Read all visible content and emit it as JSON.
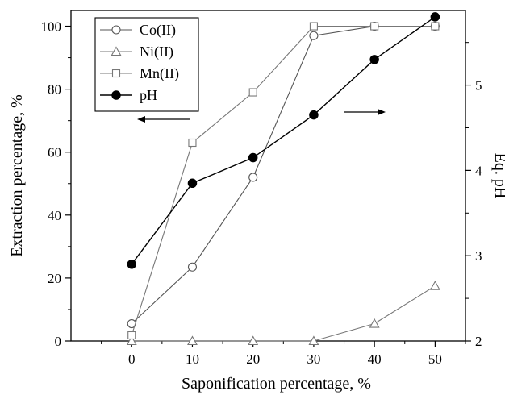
{
  "chart_data": {
    "type": "line",
    "x": [
      0,
      10,
      20,
      30,
      40,
      50
    ],
    "xlabel": "Saponification percentage, %",
    "ylabel": "Extraction percentage, %",
    "y2label": "Eq. pH",
    "xlim": [
      -10,
      55
    ],
    "ylim": [
      0,
      105
    ],
    "y2lim": [
      2,
      5.875
    ],
    "xticks": [
      "0",
      "10",
      "20",
      "30",
      "40",
      "50"
    ],
    "yticks": [
      "0",
      "20",
      "40",
      "60",
      "80",
      "100"
    ],
    "y2ticks": [
      "2",
      "3",
      "4",
      "5"
    ],
    "legend_position": "top-left",
    "series": [
      {
        "name": "Co(II)",
        "axis": "left",
        "marker": "circle-open",
        "color": "#555555",
        "values": [
          5.5,
          23.5,
          52,
          97,
          100,
          100
        ]
      },
      {
        "name": "Ni(II)",
        "axis": "left",
        "marker": "triangle-open",
        "color": "#777777",
        "values": [
          0,
          0,
          0,
          0,
          5.5,
          17.5
        ]
      },
      {
        "name": "Mn(II)",
        "axis": "left",
        "marker": "square-open",
        "color": "#777777",
        "values": [
          1.8,
          63,
          79,
          100,
          100,
          100
        ]
      },
      {
        "name": "pH",
        "axis": "right",
        "marker": "circle-filled",
        "color": "#000000",
        "values": [
          2.9,
          3.85,
          4.15,
          4.65,
          5.3,
          5.8
        ]
      }
    ]
  }
}
